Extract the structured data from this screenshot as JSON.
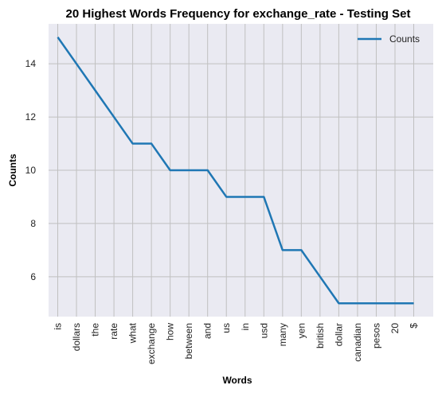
{
  "chart_data": {
    "type": "line",
    "title": "20 Highest Words Frequency for exchange_rate - Testing Set",
    "xlabel": "Words",
    "ylabel": "Counts",
    "categories": [
      "is",
      "dollars",
      "the",
      "rate",
      "what",
      "exchange",
      "how",
      "between",
      "and",
      "us",
      "in",
      "usd",
      "many",
      "yen",
      "british",
      "dollar",
      "canadian",
      "pesos",
      "20",
      "$"
    ],
    "series": [
      {
        "name": "Counts",
        "values": [
          15,
          14,
          13,
          12,
          11,
          11,
          10,
          10,
          10,
          9,
          9,
          9,
          7,
          7,
          6,
          5,
          5,
          5,
          5,
          5
        ]
      }
    ],
    "yticks": [
      6,
      8,
      10,
      12,
      14
    ],
    "ylim": [
      4.5,
      15.5
    ],
    "grid": true,
    "legend_position": "top-right",
    "colors": {
      "line": "#1f77b4",
      "plot_bg": "#eaeaf2",
      "grid": "#c0c0c0"
    }
  }
}
